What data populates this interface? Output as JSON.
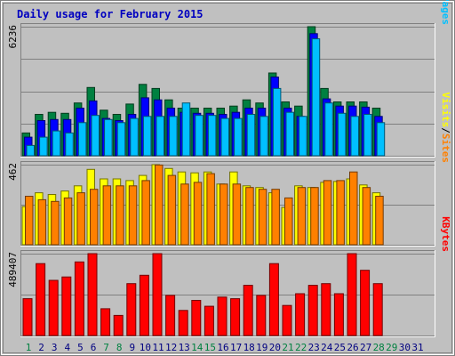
{
  "chart_data": [
    {
      "type": "bar",
      "title": "Daily usage for February 2015",
      "days": [
        "1",
        "2",
        "3",
        "4",
        "5",
        "6",
        "7",
        "8",
        "9",
        "10",
        "11",
        "12",
        "13",
        "14",
        "15",
        "16",
        "17",
        "18",
        "19",
        "20",
        "21",
        "22",
        "23",
        "24",
        "25",
        "26",
        "27",
        "28",
        "29",
        "30",
        "31"
      ],
      "weekend_days": [
        "1",
        "7",
        "8",
        "14",
        "15",
        "21",
        "22",
        "28",
        "29"
      ],
      "panel": "hits-files-pages",
      "y_max_label": "6236",
      "axis_labels": [
        {
          "text": "Pages",
          "color": "#00c0ff"
        },
        {
          "text": "Files",
          "color": "#0000ff"
        },
        {
          "text": "Hits",
          "color": "#008040"
        }
      ],
      "ylim": [
        0,
        6236
      ],
      "series": [
        {
          "name": "Hits",
          "color": "#008040",
          "values": [
            1100,
            2000,
            2100,
            2050,
            2550,
            3300,
            2200,
            2000,
            2500,
            3450,
            3250,
            2700,
            2300,
            2300,
            2300,
            2300,
            2400,
            2700,
            2550,
            4000,
            2600,
            2400,
            6236,
            3250,
            2600,
            2600,
            2600,
            2300,
            0,
            0,
            0
          ]
        },
        {
          "name": "Files",
          "color": "#0000ff",
          "values": [
            900,
            1700,
            1750,
            1750,
            2300,
            2650,
            1800,
            1700,
            2000,
            2800,
            2700,
            2300,
            2100,
            2050,
            2050,
            2000,
            2100,
            2300,
            2300,
            3800,
            2300,
            1900,
            5900,
            2750,
            2400,
            2400,
            2350,
            1900,
            0,
            0,
            0
          ]
        },
        {
          "name": "Pages",
          "color": "#00c0ff",
          "values": [
            500,
            900,
            1200,
            1100,
            1600,
            1950,
            1750,
            1600,
            1800,
            1900,
            1900,
            1900,
            2550,
            1950,
            1950,
            1800,
            1800,
            2000,
            1900,
            3250,
            2100,
            1900,
            5650,
            2550,
            2050,
            1900,
            2000,
            1600,
            0,
            0,
            0
          ]
        }
      ]
    },
    {
      "type": "bar",
      "panel": "visits-sites",
      "y_max_label": "462",
      "axis_labels": [
        {
          "text": "Sites",
          "color": "#ff8000"
        },
        {
          "text": "Visits",
          "color": "#ffff00"
        }
      ],
      "ylim": [
        0,
        462
      ],
      "series": [
        {
          "name": "Visits",
          "color": "#ffff00",
          "values": [
            220,
            300,
            290,
            310,
            340,
            435,
            380,
            380,
            370,
            400,
            462,
            440,
            420,
            415,
            420,
            350,
            420,
            340,
            330,
            300,
            215,
            340,
            330,
            360,
            365,
            380,
            345,
            300,
            0,
            0,
            0
          ]
        },
        {
          "name": "Sites",
          "color": "#ff8000",
          "values": [
            280,
            260,
            250,
            270,
            300,
            320,
            340,
            340,
            340,
            370,
            460,
            400,
            350,
            360,
            410,
            350,
            350,
            330,
            320,
            320,
            270,
            330,
            330,
            370,
            370,
            420,
            330,
            280,
            0,
            0,
            0
          ]
        }
      ]
    },
    {
      "type": "bar",
      "panel": "kbytes",
      "y_max_label": "489407",
      "axis_labels": [
        {
          "text": "KBytes",
          "color": "#ff0000"
        }
      ],
      "ylim": [
        0,
        489407
      ],
      "series": [
        {
          "name": "KBytes",
          "color": "#ff0000",
          "values": [
            220000,
            430000,
            330000,
            350000,
            440000,
            489407,
            160000,
            120000,
            310000,
            360000,
            489407,
            240000,
            150000,
            210000,
            175000,
            230000,
            220000,
            300000,
            240000,
            430000,
            180000,
            250000,
            300000,
            310000,
            250000,
            489407,
            390000,
            310000,
            0,
            0,
            0
          ]
        }
      ]
    }
  ]
}
